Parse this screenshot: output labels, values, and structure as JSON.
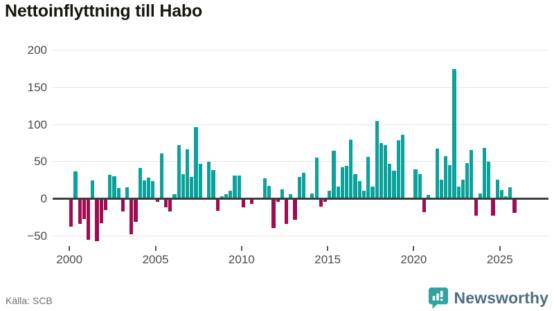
{
  "title": "Nettoinflyttning till Habo",
  "source": "Källa: SCB",
  "brand": {
    "name": "Newsworthy",
    "icon": "newsworthy-chart-bubble-icon",
    "icon_color": "#31a3a0",
    "text_color": "#4e6e7e"
  },
  "chart_data": {
    "type": "bar",
    "title": "Nettoinflyttning till Habo",
    "x_unit": "quarter",
    "start_year": 2000,
    "quarters_per_year": 4,
    "values": [
      -36,
      35,
      -33,
      -26,
      -54,
      23,
      -56,
      -32,
      -14,
      31,
      29,
      13,
      -16,
      14,
      -47,
      -30,
      40,
      23,
      27,
      22,
      -3,
      60,
      -10,
      -16,
      5,
      71,
      32,
      65,
      28,
      95,
      46,
      0,
      48,
      37,
      -15,
      2,
      5,
      9,
      30,
      30,
      -10,
      0,
      -6,
      0,
      0,
      26,
      16,
      -38,
      -3,
      11,
      -33,
      5,
      -27,
      28,
      34,
      0,
      6,
      54,
      -9,
      -3,
      9,
      63,
      15,
      41,
      43,
      78,
      32,
      22,
      9,
      55,
      15,
      103,
      74,
      71,
      46,
      36,
      77,
      85,
      0,
      0,
      38,
      32,
      -17,
      4,
      0,
      66,
      24,
      56,
      44,
      173,
      15,
      24,
      47,
      64,
      -21,
      6,
      67,
      48,
      -21,
      24,
      10,
      2,
      14,
      -18
    ],
    "x_tick_labels": [
      "2000",
      "2005",
      "2010",
      "2015",
      "2020",
      "2025"
    ],
    "y_ticks": [
      200,
      150,
      100,
      50,
      0,
      -50
    ],
    "ylim": [
      -50,
      200
    ],
    "grid": true,
    "legend": "none",
    "colors": {
      "positive": "#0ba29c",
      "negative": "#a10b52",
      "zero_axis": "#3d3d3d",
      "gridline": "#e4e4e4"
    }
  }
}
